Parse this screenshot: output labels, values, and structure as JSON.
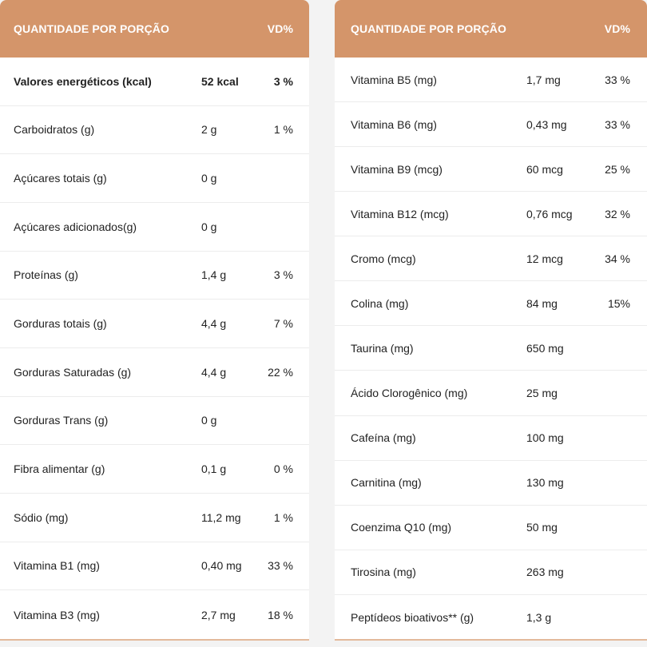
{
  "left_table": {
    "header": {
      "label": "QUANTIDADE POR PORÇÃO",
      "vd": "VD%"
    },
    "rows": [
      {
        "name": "Valores energéticos (kcal)",
        "amount": "52 kcal",
        "vd": "3 %"
      },
      {
        "name": "Carboidratos (g)",
        "amount": "2 g",
        "vd": "1 %"
      },
      {
        "name": "Açúcares totais (g)",
        "amount": "0 g",
        "vd": ""
      },
      {
        "name": "Açúcares adicionados(g)",
        "amount": "0 g",
        "vd": ""
      },
      {
        "name": "Proteínas (g)",
        "amount": "1,4 g",
        "vd": "3 %"
      },
      {
        "name": "Gorduras totais (g)",
        "amount": "4,4 g",
        "vd": "7 %"
      },
      {
        "name": "Gorduras Saturadas (g)",
        "amount": "4,4 g",
        "vd": "22 %"
      },
      {
        "name": "Gorduras Trans (g)",
        "amount": "0 g",
        "vd": ""
      },
      {
        "name": "Fibra alimentar (g)",
        "amount": "0,1 g",
        "vd": "0 %"
      },
      {
        "name": "Sódio (mg)",
        "amount": "11,2 mg",
        "vd": "1 %"
      },
      {
        "name": "Vitamina B1 (mg)",
        "amount": "0,40 mg",
        "vd": "33 %"
      },
      {
        "name": "Vitamina B3 (mg)",
        "amount": "2,7 mg",
        "vd": "18 %"
      }
    ]
  },
  "right_table": {
    "header": {
      "label": "QUANTIDADE POR PORÇÃO",
      "vd": "VD%"
    },
    "rows": [
      {
        "name": "Vitamina B5 (mg)",
        "amount": "1,7 mg",
        "vd": "33 %"
      },
      {
        "name": "Vitamina B6 (mg)",
        "amount": "0,43 mg",
        "vd": "33 %"
      },
      {
        "name": "Vitamina B9 (mcg)",
        "amount": "60 mcg",
        "vd": "25 %"
      },
      {
        "name": "Vitamina B12 (mcg)",
        "amount": "0,76 mcg",
        "vd": "32 %"
      },
      {
        "name": "Cromo (mcg)",
        "amount": "12 mcg",
        "vd": "34 %"
      },
      {
        "name": "Colina (mg)",
        "amount": "84 mg",
        "vd": "15%"
      },
      {
        "name": "Taurina (mg)",
        "amount": "650 mg",
        "vd": ""
      },
      {
        "name": "Ácido Clorogênico (mg)",
        "amount": "25 mg",
        "vd": ""
      },
      {
        "name": "Cafeína (mg)",
        "amount": "100 mg",
        "vd": ""
      },
      {
        "name": "Carnitina (mg)",
        "amount": "130 mg",
        "vd": ""
      },
      {
        "name": "Coenzima Q10 (mg)",
        "amount": "50 mg",
        "vd": ""
      },
      {
        "name": "Tirosina (mg)",
        "amount": "263 mg",
        "vd": ""
      },
      {
        "name": "Peptídeos bioativos** (g)",
        "amount": "1,3 g",
        "vd": ""
      }
    ]
  },
  "colors": {
    "header_bg": "#d4956a",
    "header_text": "#ffffff",
    "row_border": "#ececec"
  }
}
